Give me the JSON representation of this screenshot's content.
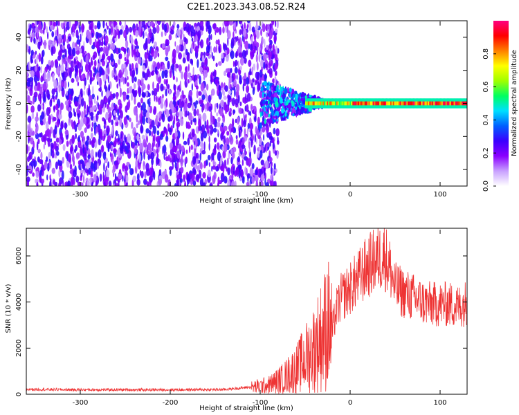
{
  "title": "C2E1.2023.343.08.52.R24",
  "chart_data": [
    {
      "type": "heatmap",
      "xlabel": "Height of straight line (km)",
      "ylabel": "Frequency (Hz)",
      "xlim": [
        -360,
        130
      ],
      "ylim": [
        -50,
        50
      ],
      "xticks": [
        -300,
        -200,
        -100,
        0,
        100
      ],
      "yticks": [
        -40,
        -20,
        0,
        20,
        40
      ],
      "colorbar": {
        "label": "Normalized spectral amplitude",
        "range": [
          0.0,
          1.0
        ],
        "ticks": [
          0.0,
          0.2,
          0.4,
          0.6,
          0.8
        ],
        "colormap": [
          "#ffffff",
          "#c8a0ff",
          "#8a00ff",
          "#3a00ff",
          "#0060ff",
          "#00e0ff",
          "#00ff60",
          "#a0ff00",
          "#ffff00",
          "#ff8000",
          "#ff0000",
          "#ff0080"
        ]
      },
      "description_regions": {
        "noise_region_x": [
          -360,
          -100
        ],
        "transition_x": [
          -100,
          -30
        ],
        "signal_band_center_hz": 0,
        "signal_band_halfwidth_hz": 3
      }
    },
    {
      "type": "line",
      "xlabel": "Height of straight line (km)",
      "ylabel": "SNR (10 * v/v)",
      "xlim": [
        -360,
        130
      ],
      "ylim": [
        0,
        7200
      ],
      "xticks": [
        -300,
        -200,
        -100,
        0,
        100
      ],
      "yticks": [
        0,
        2000,
        4000,
        6000
      ],
      "color": "#ee3333",
      "series": [
        {
          "name": "",
          "x": [
            -360,
            -300,
            -200,
            -140,
            -110,
            -90,
            -75,
            -60,
            -50,
            -40,
            -30,
            -25,
            -20,
            -15,
            -10,
            0,
            10,
            20,
            30,
            38,
            45,
            50,
            60,
            70,
            80,
            90,
            100,
            110,
            120,
            130
          ],
          "y": [
            220,
            200,
            200,
            210,
            320,
            450,
            750,
            1200,
            1700,
            2200,
            2900,
            3400,
            2800,
            3800,
            4300,
            4700,
            5200,
            5700,
            6000,
            6200,
            5500,
            4700,
            4500,
            4300,
            4100,
            4000,
            4000,
            4000,
            3900,
            4100
          ]
        }
      ]
    }
  ]
}
